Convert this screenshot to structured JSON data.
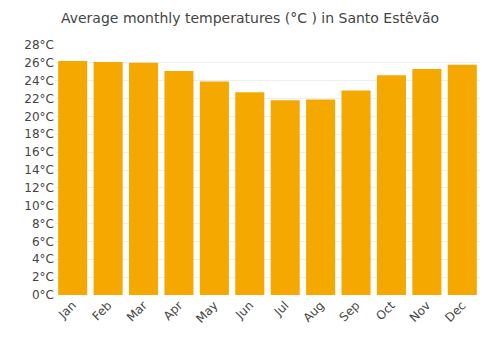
{
  "chart_data": {
    "type": "bar",
    "title": "Average monthly temperatures (°C ) in Santo Estêvão",
    "categories": [
      "Jan",
      "Feb",
      "Mar",
      "Apr",
      "May",
      "Jun",
      "Jul",
      "Aug",
      "Sep",
      "Oct",
      "Nov",
      "Dec"
    ],
    "values": [
      26.2,
      26.1,
      26.0,
      25.1,
      23.9,
      22.7,
      21.8,
      21.9,
      22.9,
      24.6,
      25.3,
      25.8
    ],
    "color": "#F5A800",
    "ylim": [
      0,
      28
    ],
    "yticks": [
      {
        "value": 0,
        "label": "0°C"
      },
      {
        "value": 2,
        "label": "2°C"
      },
      {
        "value": 4,
        "label": "4°C"
      },
      {
        "value": 6,
        "label": "6°C"
      },
      {
        "value": 8,
        "label": "8°C"
      },
      {
        "value": 10,
        "label": "10°C"
      },
      {
        "value": 12,
        "label": "12°C"
      },
      {
        "value": 14,
        "label": "14°C"
      },
      {
        "value": 16,
        "label": "16°C"
      },
      {
        "value": 18,
        "label": "18°C"
      },
      {
        "value": 20,
        "label": "20°C"
      },
      {
        "value": 22,
        "label": "22°C"
      },
      {
        "value": 24,
        "label": "24°C"
      },
      {
        "value": 26,
        "label": "26°C"
      },
      {
        "value": 28,
        "label": "28°C"
      }
    ],
    "grid": true
  }
}
